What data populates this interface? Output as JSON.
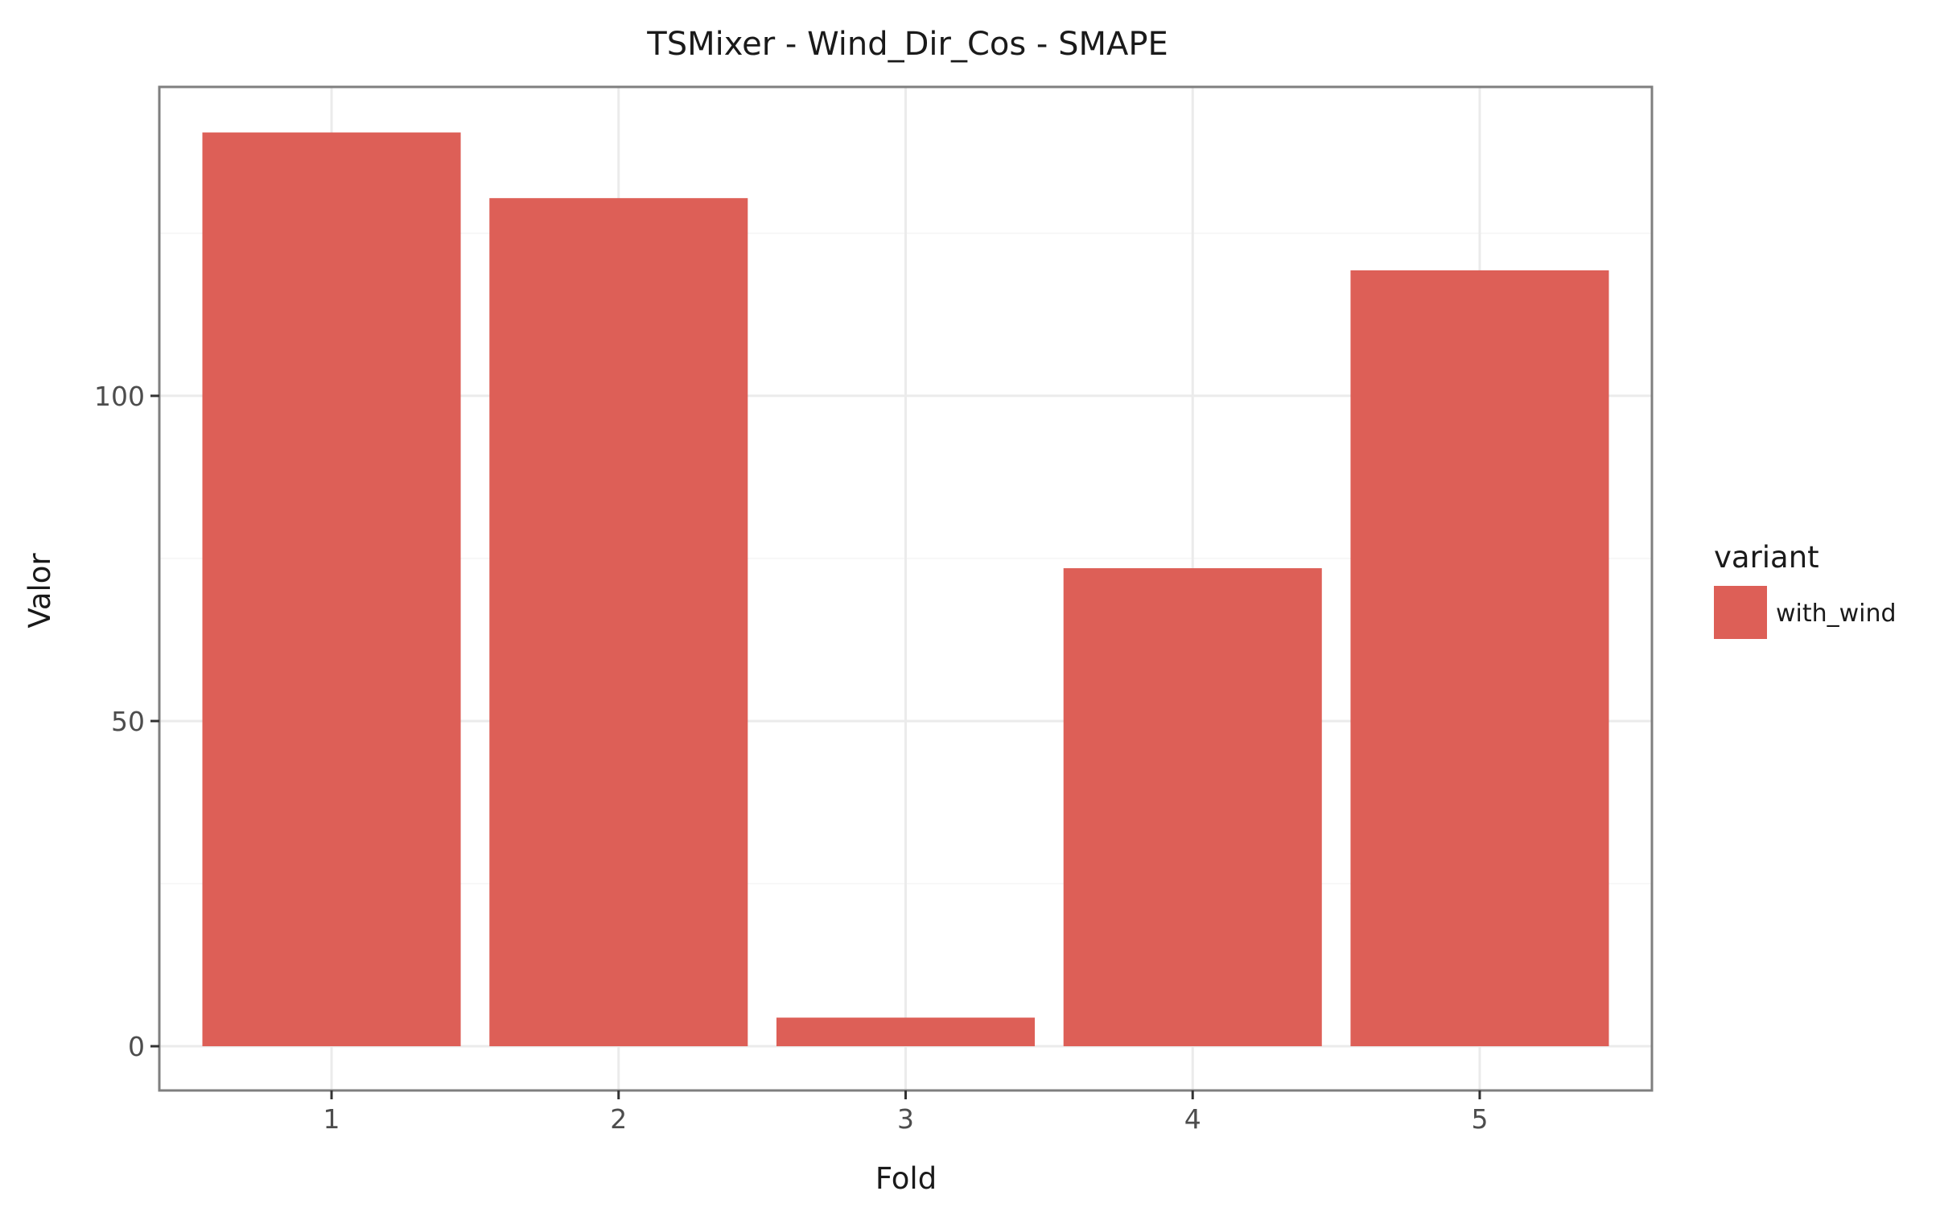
{
  "chart_data": {
    "type": "bar",
    "title": "TSMixer - Wind_Dir_Cos - SMAPE",
    "xlabel": "Fold",
    "ylabel": "Valor",
    "categories": [
      "1",
      "2",
      "3",
      "4",
      "5"
    ],
    "series": [
      {
        "name": "with_wind",
        "values": [
          140.5,
          130.4,
          4.4,
          73.5,
          119.3
        ],
        "color": "#dd5f57"
      }
    ],
    "ylim": [
      -6.8,
      147.5
    ],
    "yticks": [
      0,
      50,
      100
    ],
    "ytick_labels": [
      "0",
      "50",
      "100"
    ],
    "legend": {
      "title": "variant",
      "placement": "right"
    },
    "grid": true,
    "colors": {
      "bar": "#dd5f57",
      "grid_major": "#ebebeb",
      "grid_minor": "#f5f5f5",
      "panel_border": "#7f7f7f",
      "background": "#ffffff"
    }
  }
}
